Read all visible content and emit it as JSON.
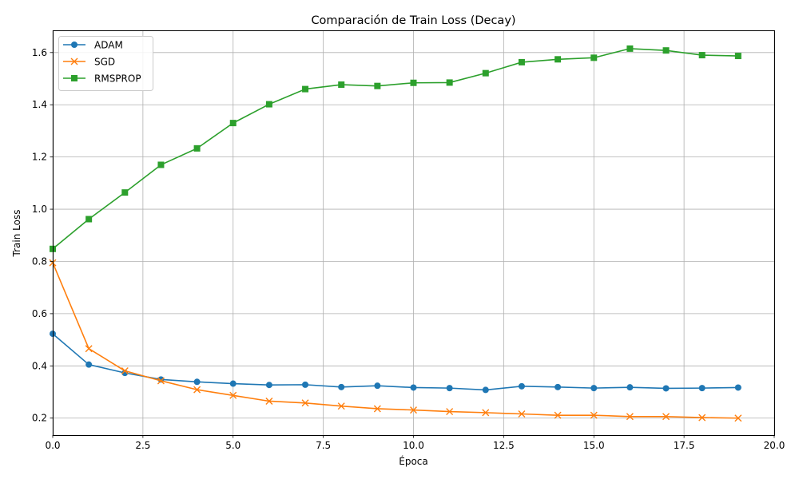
{
  "chart_data": {
    "type": "line",
    "title": "Comparación de Train Loss (Decay)",
    "xlabel": "Época",
    "ylabel": "Train Loss",
    "xlim": [
      0,
      20
    ],
    "ylim": [
      0.135,
      1.685
    ],
    "xticks": [
      0,
      2.5,
      5,
      7.5,
      10,
      12.5,
      15,
      17.5,
      20
    ],
    "xtick_labels": [
      "0.0",
      "2.5",
      "5.0",
      "7.5",
      "10.0",
      "12.5",
      "15.0",
      "17.5",
      "20.0"
    ],
    "yticks": [
      0.2,
      0.4,
      0.6,
      0.8,
      1.0,
      1.2,
      1.4,
      1.6
    ],
    "ytick_labels": [
      "0.2",
      "0.4",
      "0.6",
      "0.8",
      "1.0",
      "1.2",
      "1.4",
      "1.6"
    ],
    "grid": true,
    "legend_position": "top-left",
    "x": [
      0,
      1,
      2,
      3,
      4,
      5,
      6,
      7,
      8,
      9,
      10,
      11,
      12,
      13,
      14,
      15,
      16,
      17,
      18,
      19
    ],
    "series": [
      {
        "name": "ADAM",
        "color": "#1f77b4",
        "marker": "circle",
        "values": [
          0.523,
          0.405,
          0.373,
          0.348,
          0.339,
          0.332,
          0.327,
          0.328,
          0.319,
          0.324,
          0.317,
          0.315,
          0.308,
          0.322,
          0.319,
          0.315,
          0.318,
          0.314,
          0.315,
          0.317
        ]
      },
      {
        "name": "SGD",
        "color": "#ff7f0e",
        "marker": "x",
        "values": [
          0.795,
          0.466,
          0.381,
          0.343,
          0.309,
          0.287,
          0.265,
          0.258,
          0.246,
          0.236,
          0.231,
          0.225,
          0.221,
          0.216,
          0.211,
          0.211,
          0.206,
          0.206,
          0.202,
          0.2
        ]
      },
      {
        "name": "RMSPROP",
        "color": "#2ca02c",
        "marker": "square",
        "values": [
          0.848,
          0.962,
          1.064,
          1.17,
          1.233,
          1.33,
          1.402,
          1.46,
          1.477,
          1.472,
          1.484,
          1.485,
          1.521,
          1.563,
          1.574,
          1.58,
          1.615,
          1.608,
          1.59,
          1.587
        ]
      }
    ]
  }
}
